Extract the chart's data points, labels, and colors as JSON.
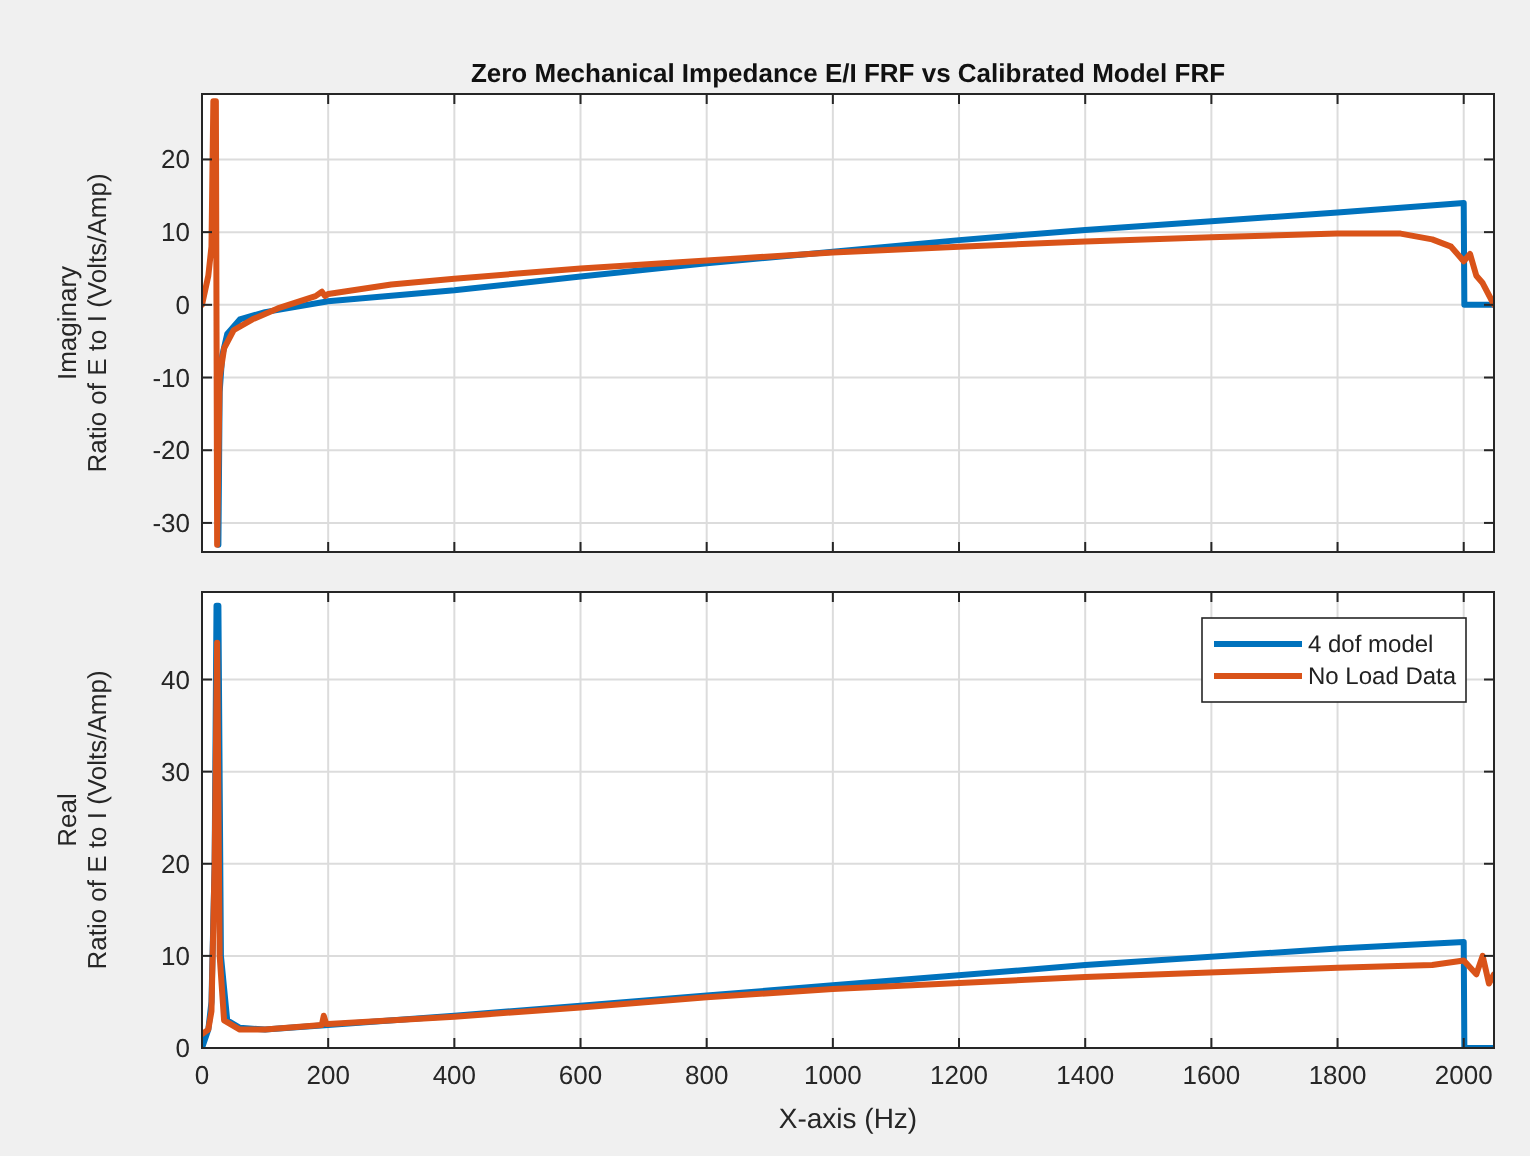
{
  "chart_data": [
    {
      "type": "line",
      "title": "Zero Mechanical Impedance E/I FRF vs Calibrated Model FRF",
      "ylabel": "Imaginary\nRatio of E to I (Volts/Amp)",
      "xlim": [
        0,
        2048
      ],
      "xticks": [
        0,
        200,
        400,
        600,
        800,
        1000,
        1200,
        1400,
        1600,
        1800,
        2000
      ],
      "ylim": [
        -34,
        29
      ],
      "yticks": [
        -30,
        -20,
        -10,
        0,
        10,
        20
      ],
      "tick_labels": "y",
      "grid": true,
      "line_style": "solid",
      "marker": "none",
      "series": [
        {
          "color": "#0072bd",
          "x": [
            26,
            28,
            32,
            40,
            60,
            100,
            200,
            400,
            600,
            800,
            1000,
            1200,
            1400,
            1600,
            1800,
            2000,
            2001,
            2048
          ],
          "values": [
            -33,
            -12,
            -7,
            -4,
            -2,
            -1,
            0.5,
            2,
            3.9,
            5.7,
            7.3,
            8.9,
            10.3,
            11.5,
            12.7,
            14,
            0,
            0
          ]
        },
        {
          "color": "#d95319",
          "x": [
            0,
            10,
            15,
            18,
            22,
            24,
            28,
            35,
            50,
            80,
            120,
            180,
            190,
            195,
            200,
            300,
            400,
            600,
            800,
            1000,
            1200,
            1400,
            1600,
            1800,
            1900,
            1950,
            1980,
            2000,
            2010,
            2020,
            2030,
            2048
          ],
          "values": [
            0,
            4,
            8,
            28,
            28,
            -33,
            -10,
            -6,
            -3.5,
            -2,
            -0.5,
            1.2,
            1.8,
            1.2,
            1.5,
            2.8,
            3.6,
            5,
            6.1,
            7.2,
            8,
            8.7,
            9.3,
            9.8,
            9.8,
            9,
            8,
            6,
            7,
            4,
            3,
            0
          ]
        }
      ]
    },
    {
      "type": "line",
      "xlabel": "X-axis (Hz)",
      "ylabel": "Real\nRatio of E to I (Volts/Amp)",
      "xlim": [
        0,
        2048
      ],
      "xticks": [
        0,
        200,
        400,
        600,
        800,
        1000,
        1200,
        1400,
        1600,
        1800,
        2000
      ],
      "ylim": [
        0,
        49.5
      ],
      "yticks": [
        0,
        10,
        20,
        30,
        40
      ],
      "grid": true,
      "legend": "top right",
      "line_style": "solid",
      "marker": "none",
      "series": [
        {
          "name": "4 dof model",
          "color": "#0072bd",
          "x": [
            0,
            10,
            15,
            20,
            23,
            26,
            30,
            40,
            60,
            100,
            200,
            400,
            600,
            800,
            1000,
            1400,
            1800,
            2000,
            2001,
            2048
          ],
          "values": [
            0,
            2,
            5,
            20,
            48,
            48,
            10,
            3,
            2.2,
            2,
            2.5,
            3.5,
            4.6,
            5.7,
            6.8,
            9,
            10.8,
            11.5,
            0,
            0
          ]
        },
        {
          "name": "No Load Data",
          "color": "#d95319",
          "x": [
            0,
            10,
            15,
            20,
            24,
            28,
            35,
            60,
            100,
            190,
            193,
            197,
            200,
            400,
            600,
            800,
            1000,
            1400,
            1800,
            1950,
            2000,
            2020,
            2030,
            2040,
            2048
          ],
          "values": [
            1.5,
            2,
            4,
            20,
            44,
            10,
            3,
            2,
            2,
            2.5,
            3.5,
            2.6,
            2.6,
            3.4,
            4.4,
            5.5,
            6.4,
            7.7,
            8.7,
            9,
            9.5,
            8,
            10,
            7,
            8
          ]
        }
      ]
    }
  ]
}
